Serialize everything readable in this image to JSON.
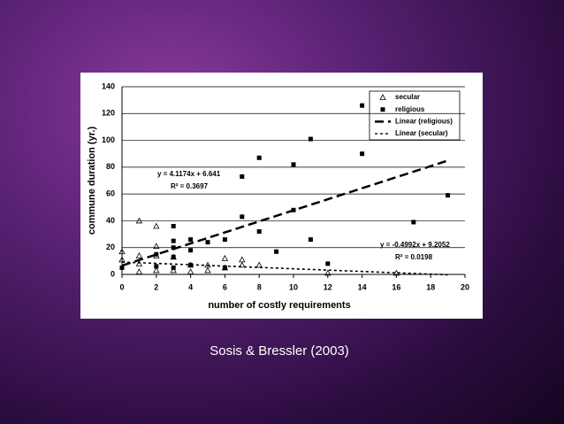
{
  "chart_data": {
    "type": "scatter",
    "caption": "Sosis & Bressler (2003)",
    "x_label": "number of costly requirements",
    "y_label": "commune duration (yr.)",
    "xlim": [
      0,
      20
    ],
    "ylim": [
      0,
      140
    ],
    "xticks": [
      0,
      2,
      4,
      6,
      8,
      10,
      12,
      14,
      16,
      18,
      20
    ],
    "yticks": [
      0,
      20,
      40,
      60,
      80,
      100,
      120,
      140
    ],
    "grid": true,
    "legend": "upper right",
    "series": [
      {
        "name": "secular",
        "type": "scatter",
        "marker": "triangle",
        "color": "#000000",
        "x": [
          0,
          0,
          1,
          1,
          1,
          1,
          2,
          2,
          2,
          2,
          3,
          3,
          4,
          4,
          5,
          5,
          6,
          6,
          7,
          7,
          8,
          12,
          16
        ],
        "values": [
          17,
          11,
          40,
          14,
          8,
          2,
          36,
          21,
          14,
          3,
          13,
          3,
          7,
          2,
          7,
          3,
          12,
          5,
          11,
          7,
          7,
          1,
          1
        ]
      },
      {
        "name": "religious",
        "type": "scatter",
        "marker": "square",
        "color": "#000000",
        "x": [
          0,
          2,
          2,
          3,
          3,
          3,
          3,
          3,
          4,
          4,
          4,
          5,
          6,
          6,
          7,
          7,
          8,
          8,
          9,
          10,
          10,
          11,
          11,
          12,
          14,
          14,
          17,
          19
        ],
        "values": [
          5,
          15,
          6,
          36,
          25,
          20,
          13,
          5,
          26,
          18,
          7,
          24,
          26,
          5,
          73,
          43,
          87,
          32,
          17,
          82,
          48,
          101,
          26,
          8,
          126,
          90,
          39,
          59
        ]
      },
      {
        "name": "Linear (religious)",
        "type": "line",
        "dash": "long",
        "color": "#000000",
        "x": [
          0,
          19
        ],
        "values": [
          6.6,
          84.9
        ]
      },
      {
        "name": "Linear (secular)",
        "type": "line",
        "dash": "short",
        "color": "#000000",
        "x": [
          0,
          19
        ],
        "values": [
          9.2,
          -0.3
        ]
      }
    ],
    "annotations": [
      "y = 4.1174x + 6.641",
      "R² = 0.3697",
      "y = -0.4992x + 9.2052",
      "R² = 0.0198"
    ]
  }
}
